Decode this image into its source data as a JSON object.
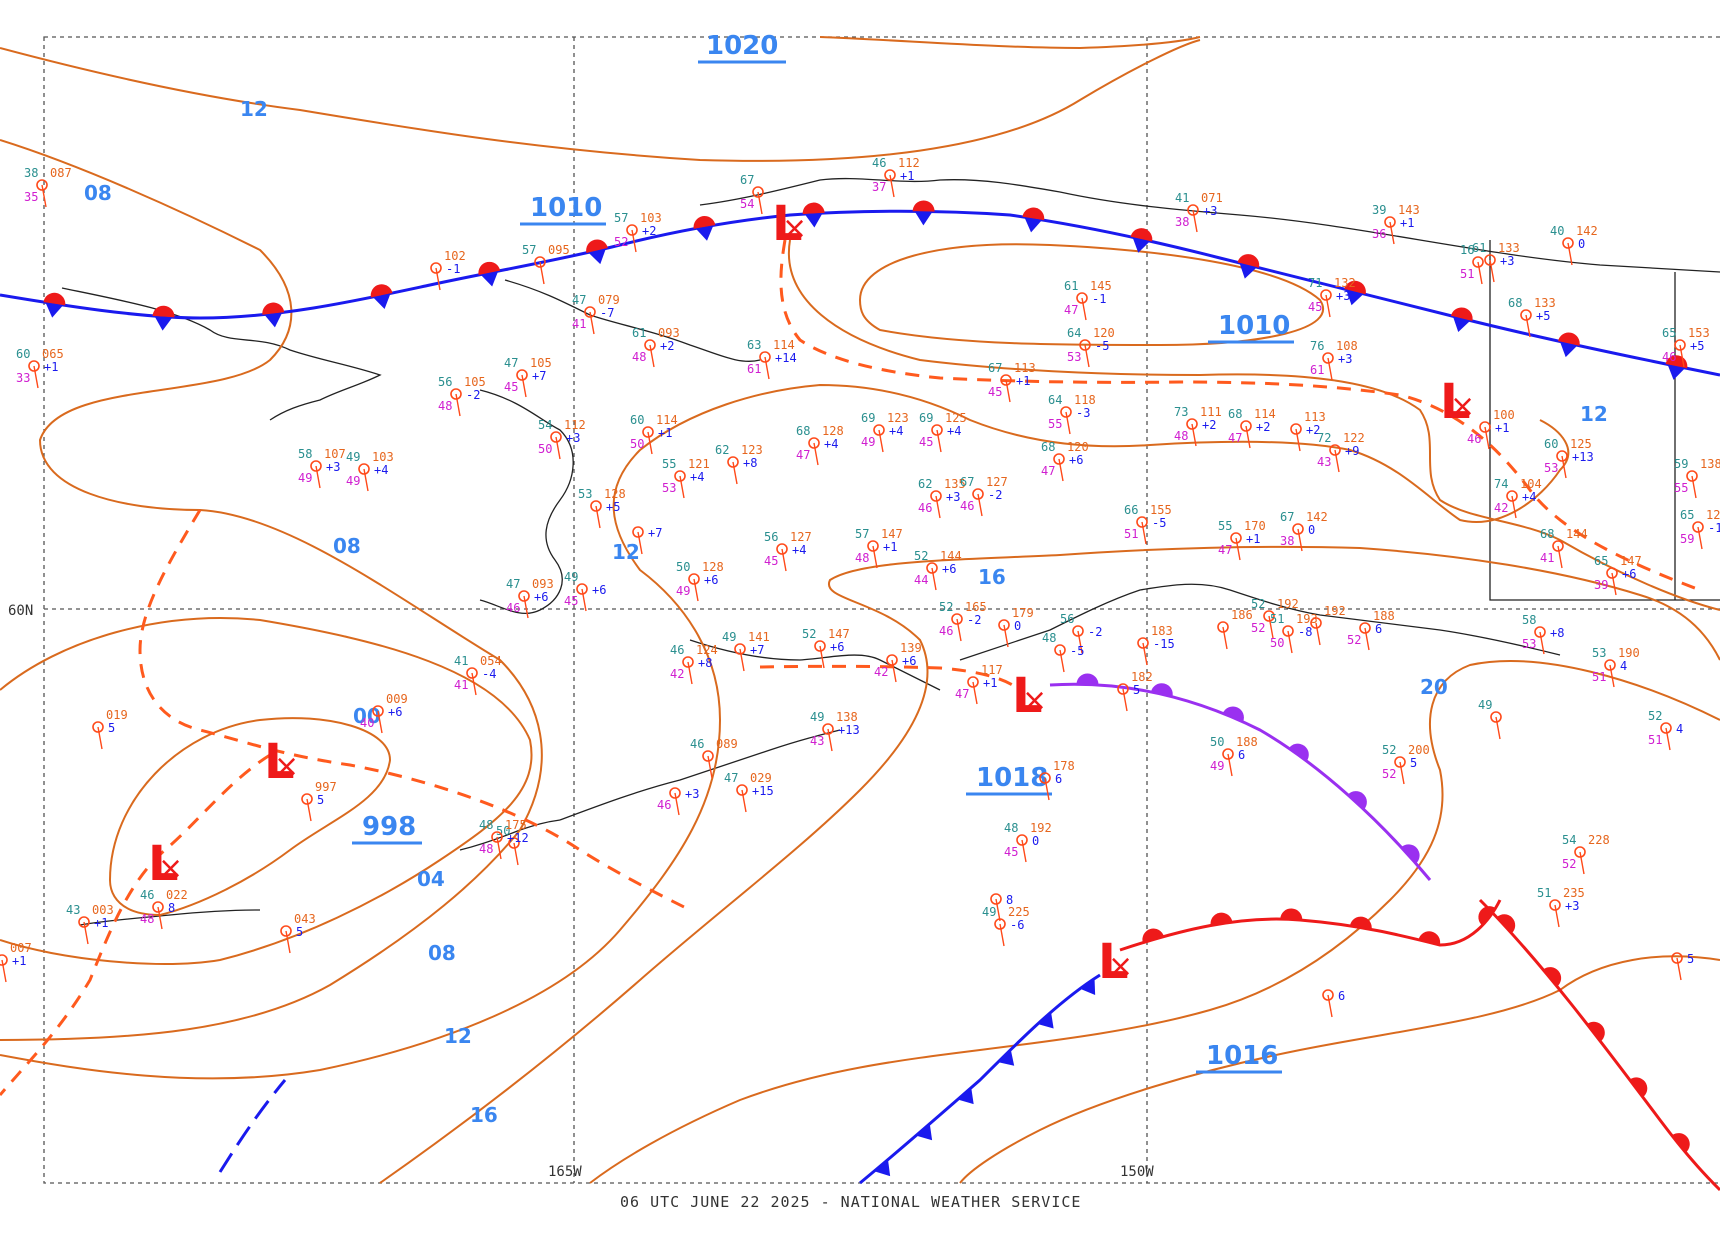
{
  "colors": {
    "isobar": "#d96a1e",
    "label": "#3a86f0",
    "low": "#ee1a1a",
    "cold_front": "#1a1aee",
    "warm_front": "#ee1a1a",
    "occluded_front": "#9a30f0",
    "trough": "#ff5a1e"
  },
  "isobar_labels": [
    "12",
    "08",
    "08",
    "12",
    "00",
    "04",
    "08",
    "12",
    "16",
    "12",
    "16",
    "20"
  ],
  "pressure_centers": [
    "1020",
    "1010",
    "1010",
    "998",
    "1018",
    "1016"
  ],
  "lows": [
    "L",
    "L",
    "L",
    "L",
    "L",
    "L"
  ],
  "grid_labels": {
    "lat_60": "60N",
    "lon_165": "165W",
    "lon_150": "150W"
  },
  "footer": "06 UTC JUNE 22 2025 - NATIONAL WEATHER SERVICE",
  "stations": [
    {
      "t": "38",
      "p": "087",
      "d": "35",
      "c": ""
    },
    {
      "t": "",
      "p": "102",
      "d": "",
      "c": "-1"
    },
    {
      "t": "57",
      "p": "103",
      "d": "52",
      "c": "+2"
    },
    {
      "t": "67",
      "p": "",
      "d": "54",
      "c": ""
    },
    {
      "t": "46",
      "p": "112",
      "d": "37",
      "c": "+1"
    },
    {
      "t": "41",
      "p": "071",
      "d": "38",
      "c": "+3"
    },
    {
      "t": "39",
      "p": "143",
      "d": "36",
      "c": "+1"
    },
    {
      "t": "40",
      "p": "142",
      "d": "",
      "c": "0"
    },
    {
      "t": "60",
      "p": "065",
      "d": "33",
      "c": "+1"
    },
    {
      "t": "57",
      "p": "095",
      "d": "",
      "c": ""
    },
    {
      "t": "47",
      "p": "079",
      "d": "41",
      "c": "-7"
    },
    {
      "t": "61",
      "p": "093",
      "d": "48",
      "c": "+2"
    },
    {
      "t": "63",
      "p": "114",
      "d": "61",
      "c": "+14"
    },
    {
      "t": "47",
      "p": "105",
      "d": "45",
      "c": "+7"
    },
    {
      "t": "56",
      "p": "105",
      "d": "48",
      "c": "-2"
    },
    {
      "t": "61",
      "p": "145",
      "d": "47",
      "c": "-1"
    },
    {
      "t": "64",
      "p": "120",
      "d": "53",
      "c": "-5"
    },
    {
      "t": "71",
      "p": "132",
      "d": "45",
      "c": "+3"
    },
    {
      "t": "61",
      "p": "133",
      "d": "",
      "c": "+3"
    },
    {
      "t": "16",
      "p": "",
      "d": "51",
      "c": ""
    },
    {
      "t": "68",
      "p": "133",
      "d": "",
      "c": "+5"
    },
    {
      "t": "65",
      "p": "153",
      "d": "46",
      "c": "+5"
    },
    {
      "t": "76",
      "p": "108",
      "d": "61",
      "c": "+3"
    },
    {
      "t": "67",
      "p": "113",
      "d": "45",
      "c": "+1"
    },
    {
      "t": "54",
      "p": "112",
      "d": "50",
      "c": "+3"
    },
    {
      "t": "60",
      "p": "114",
      "d": "50",
      "c": "+1"
    },
    {
      "t": "58",
      "p": "107",
      "d": "49",
      "c": "+3"
    },
    {
      "t": "49",
      "p": "103",
      "d": "49",
      "c": "+4"
    },
    {
      "t": "55",
      "p": "121",
      "d": "53",
      "c": "+4"
    },
    {
      "t": "62",
      "p": "123",
      "d": "",
      "c": "+8"
    },
    {
      "t": "68",
      "p": "128",
      "d": "47",
      "c": "+4"
    },
    {
      "t": "69",
      "p": "123",
      "d": "49",
      "c": "+4"
    },
    {
      "t": "69",
      "p": "125",
      "d": "45",
      "c": "+4"
    },
    {
      "t": "64",
      "p": "118",
      "d": "55",
      "c": "-3"
    },
    {
      "t": "73",
      "p": "111",
      "d": "48",
      "c": "+2"
    },
    {
      "t": "68",
      "p": "114",
      "d": "47",
      "c": "+2"
    },
    {
      "t": "",
      "p": "113",
      "d": "",
      "c": "+2"
    },
    {
      "t": "72",
      "p": "122",
      "d": "43",
      "c": "+9"
    },
    {
      "t": "",
      "p": "100",
      "d": "46",
      "c": "+1"
    },
    {
      "t": "60",
      "p": "125",
      "d": "53",
      "c": "+13"
    },
    {
      "t": "59",
      "p": "138",
      "d": "55",
      "c": ""
    },
    {
      "t": "68",
      "p": "120",
      "d": "47",
      "c": "+6"
    },
    {
      "t": "62",
      "p": "135",
      "d": "46",
      "c": "+3"
    },
    {
      "t": "67",
      "p": "127",
      "d": "46",
      "c": "-2"
    },
    {
      "t": "74",
      "p": "104",
      "d": "42",
      "c": "+4"
    },
    {
      "t": "65",
      "p": "127",
      "d": "59",
      "c": "-1"
    },
    {
      "t": "53",
      "p": "128",
      "d": "",
      "c": "+5"
    },
    {
      "t": "",
      "p": "",
      "d": "",
      "c": "+7"
    },
    {
      "t": "56",
      "p": "127",
      "d": "45",
      "c": "+4"
    },
    {
      "t": "57",
      "p": "147",
      "d": "48",
      "c": "+1"
    },
    {
      "t": "52",
      "p": "144",
      "d": "44",
      "c": "+6"
    },
    {
      "t": "66",
      "p": "155",
      "d": "51",
      "c": "-5"
    },
    {
      "t": "55",
      "p": "170",
      "d": "47",
      "c": "+1"
    },
    {
      "t": "67",
      "p": "142",
      "d": "38",
      "c": "0"
    },
    {
      "t": "68",
      "p": "144",
      "d": "41",
      "c": ""
    },
    {
      "t": "65",
      "p": "147",
      "d": "39",
      "c": "+6"
    },
    {
      "t": "69",
      "p": "",
      "d": "",
      "c": ""
    },
    {
      "t": "50",
      "p": "128",
      "d": "49",
      "c": "+6"
    },
    {
      "t": "47",
      "p": "093",
      "d": "46",
      "c": "+6"
    },
    {
      "t": "49",
      "p": "",
      "d": "45",
      "c": "+6"
    },
    {
      "t": "52",
      "p": "165",
      "d": "46",
      "c": "-2"
    },
    {
      "t": "",
      "p": "179",
      "d": "",
      "c": "0"
    },
    {
      "t": "56",
      "p": "",
      "d": "",
      "c": "-2"
    },
    {
      "t": "48",
      "p": "",
      "d": "",
      "c": "-5"
    },
    {
      "t": "",
      "p": "183",
      "d": "",
      "c": "-15"
    },
    {
      "t": "52",
      "p": "192",
      "d": "52",
      "c": ""
    },
    {
      "t": "51",
      "p": "193",
      "d": "50",
      "c": "-8"
    },
    {
      "t": "",
      "p": "192",
      "d": "",
      "c": ""
    },
    {
      "t": "",
      "p": "188",
      "d": "52",
      "c": "6"
    },
    {
      "t": "",
      "p": "186",
      "d": "",
      "c": ""
    },
    {
      "t": "58",
      "p": "",
      "d": "53",
      "c": "+8"
    },
    {
      "t": "53",
      "p": "190",
      "d": "51",
      "c": "4"
    },
    {
      "t": "52",
      "p": "",
      "d": "51",
      "c": "4"
    },
    {
      "t": "41",
      "p": "054",
      "d": "41",
      "c": "-4"
    },
    {
      "t": "",
      "p": "019",
      "d": "",
      "c": "5"
    },
    {
      "t": "",
      "p": "009",
      "d": "40",
      "c": "+6"
    },
    {
      "t": "",
      "p": "997",
      "d": "",
      "c": "5"
    },
    {
      "t": "46",
      "p": "124",
      "d": "42",
      "c": "+8"
    },
    {
      "t": "49",
      "p": "141",
      "d": "",
      "c": "+7"
    },
    {
      "t": "52",
      "p": "147",
      "d": "",
      "c": "+6"
    },
    {
      "t": "",
      "p": "139",
      "d": "42",
      "c": "+6"
    },
    {
      "t": "",
      "p": "117",
      "d": "47",
      "c": "+1"
    },
    {
      "t": "",
      "p": "182",
      "d": "",
      "c": "5"
    },
    {
      "t": "49",
      "p": "138",
      "d": "43",
      "c": "+13"
    },
    {
      "t": "50",
      "p": "188",
      "d": "49",
      "c": "6"
    },
    {
      "t": "",
      "p": "178",
      "d": "",
      "c": "6"
    },
    {
      "t": "52",
      "p": "200",
      "d": "52",
      "c": "5"
    },
    {
      "t": "49",
      "p": "",
      "d": "",
      "c": ""
    },
    {
      "t": "46",
      "p": "089",
      "d": "",
      "c": ""
    },
    {
      "t": "",
      "p": "",
      "d": "46",
      "c": "+3"
    },
    {
      "t": "47",
      "p": "029",
      "d": "",
      "c": "+15"
    },
    {
      "t": "50",
      "p": "",
      "d": "",
      "c": ""
    },
    {
      "t": "48",
      "p": "175",
      "d": "48",
      "c": "+12"
    },
    {
      "t": "48",
      "p": "192",
      "d": "45",
      "c": "0"
    },
    {
      "t": "",
      "p": "",
      "d": "",
      "c": "8"
    },
    {
      "t": "49",
      "p": "225",
      "d": "",
      "c": "-6"
    },
    {
      "t": "54",
      "p": "228",
      "d": "52",
      "c": ""
    },
    {
      "t": "51",
      "p": "235",
      "d": "",
      "c": "+3"
    },
    {
      "t": "",
      "p": "",
      "d": "",
      "c": "5"
    },
    {
      "t": "",
      "p": "",
      "d": "",
      "c": "6"
    },
    {
      "t": "45",
      "p": "007",
      "d": "42",
      "c": "+1"
    },
    {
      "t": "43",
      "p": "003",
      "d": "",
      "c": "+1"
    },
    {
      "t": "46",
      "p": "022",
      "d": "48",
      "c": "8"
    },
    {
      "t": "",
      "p": "043",
      "d": "",
      "c": "5"
    }
  ]
}
